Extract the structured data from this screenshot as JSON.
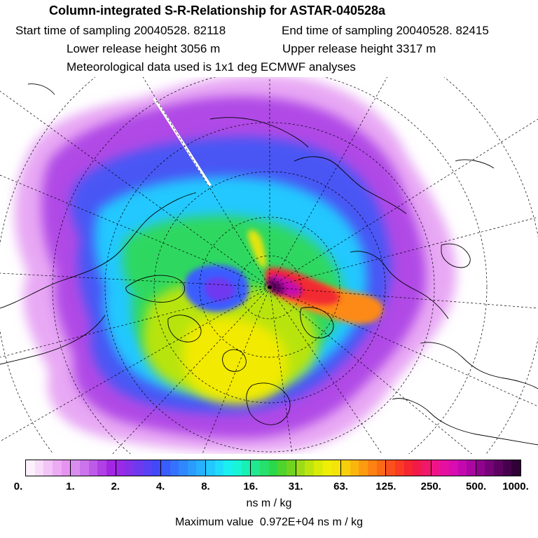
{
  "header": {
    "title": "Column-integrated S-R-Relationship for ASTAR-040528a",
    "start_time": "Start time of sampling 20040528. 82118",
    "end_time": "End time of sampling 20040528. 82415",
    "lower_height": "Lower release height 3056 m",
    "upper_height": "Upper release height 3317 m",
    "met_data": "Meteorological data used is 1x1 deg ECMWF analyses"
  },
  "colorbar": {
    "tick_labels": [
      "0.",
      "1.",
      "2.",
      "4.",
      "8.",
      "16.",
      "31.",
      "63.",
      "125.",
      "250.",
      "500.",
      "1000."
    ],
    "units": "ns m / kg",
    "colors": [
      "#fdf0fd",
      "#f8dcfa",
      "#f2c4f7",
      "#ecabf4",
      "#e693f1",
      "#d98df0",
      "#cc74ec",
      "#be5ae8",
      "#b040e5",
      "#a326e2",
      "#9a2ae6",
      "#8531ea",
      "#6f39ef",
      "#5941f4",
      "#4349f9",
      "#3a5dff",
      "#3572ff",
      "#3087ff",
      "#2b9cff",
      "#26b0ff",
      "#22c8ff",
      "#1edcfa",
      "#1af0f0",
      "#18f5d6",
      "#18f0b4",
      "#1fe88f",
      "#26e06b",
      "#2dd848",
      "#4ed42c",
      "#70d31f",
      "#9bdc17",
      "#bde40f",
      "#d9ec08",
      "#efef05",
      "#f4e40a",
      "#f8cf0c",
      "#fbb60e",
      "#fd9b10",
      "#fd8212",
      "#fd6a16",
      "#fc501c",
      "#fa3a25",
      "#f5262f",
      "#f11a49",
      "#f01869",
      "#ee1488",
      "#e610a0",
      "#d80cb0",
      "#c408b0",
      "#aa06a0",
      "#8f048c",
      "#760377",
      "#5e0262",
      "#46014c",
      "#300036"
    ]
  },
  "footer": {
    "max_label": "Maximum value",
    "max_value": "0.972E+04 ns m / kg"
  }
}
